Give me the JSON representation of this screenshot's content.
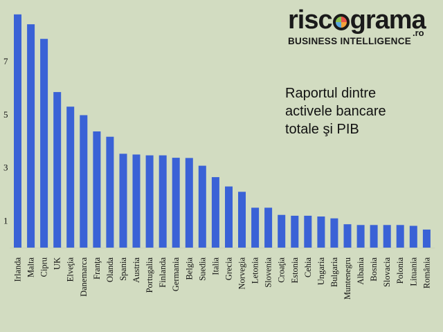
{
  "logo": {
    "word_start": "risc",
    "word_end": "grama",
    "domain": ".ro",
    "tagline": "BUSINESS INTELLIGENCE"
  },
  "title_lines": [
    "Raportul dintre",
    "activele bancare",
    "totale şi PIB"
  ],
  "chart_data": {
    "type": "bar",
    "title": "Raportul dintre activele bancare totale şi PIB",
    "bar_color": "#3a62d6",
    "background": "#d2dcc1",
    "ylim": [
      0,
      9
    ],
    "yticks": [
      1,
      3,
      5,
      7
    ],
    "grid": false,
    "categories": [
      "Irlanda",
      "Malta",
      "Cipru",
      "UK",
      "Elveţia",
      "Danemarca",
      "Franţa",
      "Olanda",
      "Spania",
      "Austria",
      "Portugalia",
      "Finlanda",
      "Germania",
      "Belgia",
      "Suedia",
      "Italia",
      "Grecia",
      "Norvegia",
      "Letonia",
      "Slovenia",
      "Croaţia",
      "Estonia",
      "Cehia",
      "Ungaria",
      "Bulgaria",
      "Muntenegru",
      "Albania",
      "Bosnia",
      "Slovacia",
      "Polonia",
      "Lituania",
      "România"
    ],
    "values": [
      8.77,
      8.4,
      7.85,
      5.85,
      5.3,
      4.98,
      4.37,
      4.17,
      3.53,
      3.5,
      3.47,
      3.47,
      3.38,
      3.37,
      3.08,
      2.65,
      2.3,
      2.1,
      1.5,
      1.5,
      1.23,
      1.2,
      1.2,
      1.17,
      1.1,
      0.88,
      0.85,
      0.85,
      0.85,
      0.85,
      0.82,
      0.68
    ]
  }
}
